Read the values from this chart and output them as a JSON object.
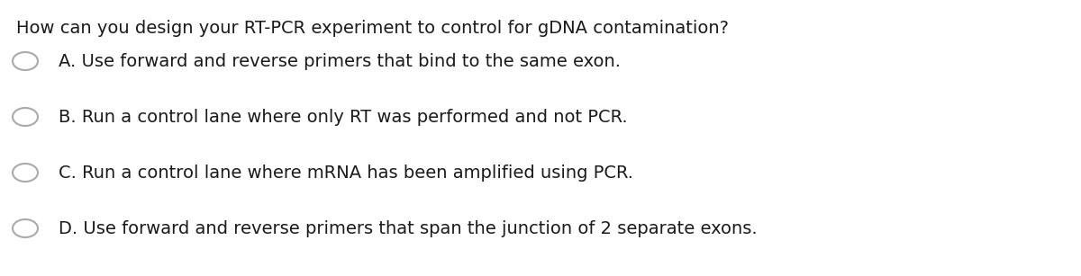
{
  "background_color": "#ffffff",
  "question": "How can you design your RT-PCR experiment to control for gDNA contamination?",
  "options": [
    "A. Use forward and reverse primers that bind to the same exon.",
    "B. Run a control lane where only RT was performed and not PCR.",
    "C. Run a control lane where mRNA has been amplified using PCR.",
    "D. Use forward and reverse primers that span the junction of 2 separate exons."
  ],
  "question_fontsize": 14,
  "option_fontsize": 14,
  "text_color": "#1a1a1a",
  "circle_edge_color": "#aaaaaa",
  "circle_face_color": "#ffffff",
  "font_family": "DejaVu Sans"
}
